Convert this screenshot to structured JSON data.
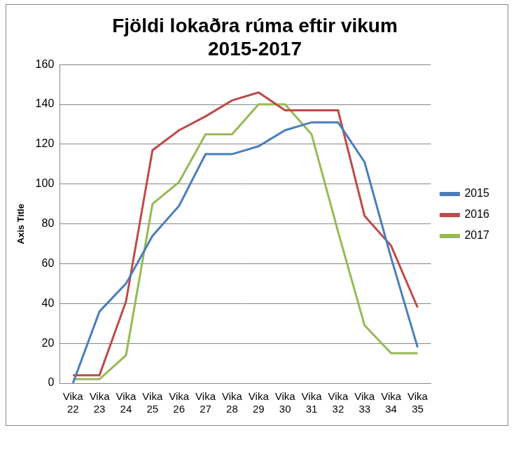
{
  "chart_data": {
    "type": "line",
    "title": [
      "Fjöldi lokaðra rúma eftir vikum",
      "2015-2017"
    ],
    "y_label": "Axis Title",
    "categories": [
      "Vika 22",
      "Vika 23",
      "Vika 24",
      "Vika 25",
      "Vika 26",
      "Vika 27",
      "Vika 28",
      "Vika 29",
      "Vika 30",
      "Vika 31",
      "Vika 32",
      "Vika 33",
      "Vika 34",
      "Vika 35"
    ],
    "series": [
      {
        "name": "2015",
        "color": "#4a7ebb",
        "values": [
          0,
          36,
          50,
          74,
          89,
          115,
          115,
          119,
          127,
          131,
          131,
          111,
          63,
          18
        ]
      },
      {
        "name": "2016",
        "color": "#be4b48",
        "values": [
          4,
          4,
          41,
          117,
          127,
          134,
          142,
          146,
          137,
          137,
          137,
          84,
          69,
          38
        ]
      },
      {
        "name": "2017",
        "color": "#98b954",
        "values": [
          2,
          2,
          14,
          90,
          101,
          125,
          125,
          140,
          140,
          125,
          76,
          29,
          15,
          15
        ]
      }
    ],
    "ylim": [
      0,
      160
    ],
    "yticks": [
      0,
      20,
      40,
      60,
      80,
      100,
      120,
      140,
      160
    ],
    "grid": true,
    "legend": "right"
  }
}
